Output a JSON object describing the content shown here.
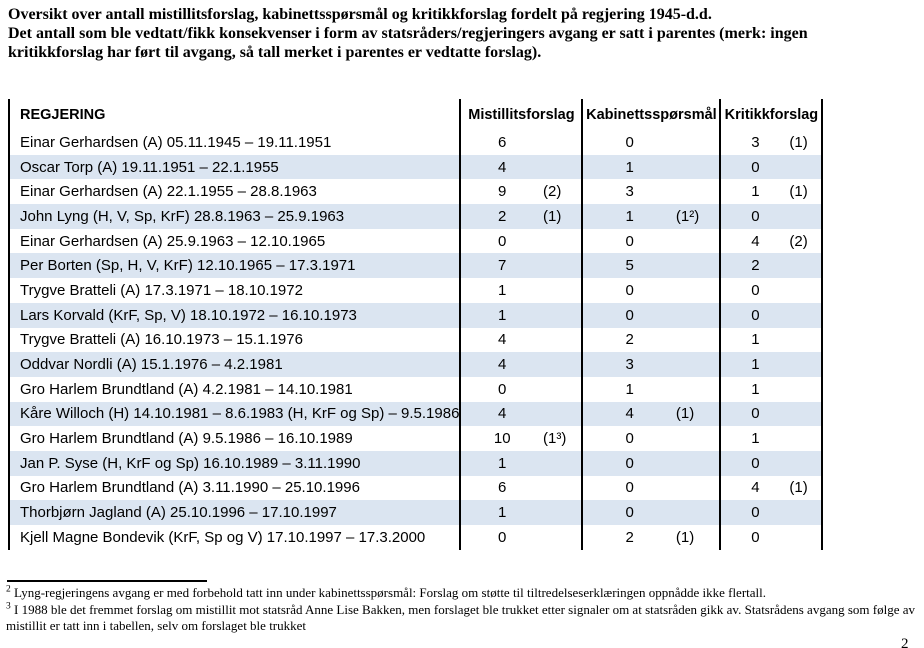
{
  "intro": {
    "lines": [
      "Oversikt over antall mistillitsforslag, kabinettsspørsmål og kritikkforslag fordelt på regjering 1945-d.d.",
      "Det antall som ble vedtatt/fikk konsekvenser i form av statsråders/regjeringers avgang er satt i parentes (merk: ingen",
      "kritikkforslag har ført til avgang, så tall merket i parentes er vedtatte forslag)."
    ]
  },
  "table": {
    "columns": [
      "REGJERING",
      "Mistillitsforslag",
      "Kabinettsspørsmål",
      "Kritikkforslag"
    ],
    "rows": [
      {
        "regjering": "Einar Gerhardsen (A) 05.11.1945 – 19.11.1951",
        "mistillitsforslag": "6",
        "mistillitsforslag_vedtatt": "",
        "kabinettssporsmal": "0",
        "kabinettssporsmal_vedtatt": "",
        "kritikkforslag": "3",
        "kritikkforslag_vedtatt": "(1)"
      },
      {
        "regjering": "Oscar Torp (A) 19.11.1951 – 22.1.1955",
        "mistillitsforslag": "4",
        "mistillitsforslag_vedtatt": "",
        "kabinettssporsmal": "1",
        "kabinettssporsmal_vedtatt": "",
        "kritikkforslag": "0",
        "kritikkforslag_vedtatt": ""
      },
      {
        "regjering": "Einar Gerhardsen (A) 22.1.1955 – 28.8.1963",
        "mistillitsforslag": "9",
        "mistillitsforslag_vedtatt": "(2)",
        "kabinettssporsmal": "3",
        "kabinettssporsmal_vedtatt": "",
        "kritikkforslag": "1",
        "kritikkforslag_vedtatt": "(1)"
      },
      {
        "regjering": "John Lyng (H, V, Sp, KrF) 28.8.1963 – 25.9.1963",
        "mistillitsforslag": "2",
        "mistillitsforslag_vedtatt": "(1)",
        "kabinettssporsmal": "1",
        "kabinettssporsmal_vedtatt": "(1²)",
        "kritikkforslag": "0",
        "kritikkforslag_vedtatt": ""
      },
      {
        "regjering": "Einar Gerhardsen (A) 25.9.1963 – 12.10.1965",
        "mistillitsforslag": "0",
        "mistillitsforslag_vedtatt": "",
        "kabinettssporsmal": "0",
        "kabinettssporsmal_vedtatt": "",
        "kritikkforslag": "4",
        "kritikkforslag_vedtatt": "(2)"
      },
      {
        "regjering": "Per Borten (Sp, H, V, KrF) 12.10.1965 – 17.3.1971",
        "mistillitsforslag": "7",
        "mistillitsforslag_vedtatt": "",
        "kabinettssporsmal": "5",
        "kabinettssporsmal_vedtatt": "",
        "kritikkforslag": "2",
        "kritikkforslag_vedtatt": ""
      },
      {
        "regjering": "Trygve Bratteli (A) 17.3.1971 – 18.10.1972",
        "mistillitsforslag": "1",
        "mistillitsforslag_vedtatt": "",
        "kabinettssporsmal": "0",
        "kabinettssporsmal_vedtatt": "",
        "kritikkforslag": "0",
        "kritikkforslag_vedtatt": ""
      },
      {
        "regjering": "Lars Korvald (KrF, Sp, V) 18.10.1972 – 16.10.1973",
        "mistillitsforslag": "1",
        "mistillitsforslag_vedtatt": "",
        "kabinettssporsmal": "0",
        "kabinettssporsmal_vedtatt": "",
        "kritikkforslag": "0",
        "kritikkforslag_vedtatt": ""
      },
      {
        "regjering": "Trygve Bratteli (A) 16.10.1973 – 15.1.1976",
        "mistillitsforslag": "4",
        "mistillitsforslag_vedtatt": "",
        "kabinettssporsmal": "2",
        "kabinettssporsmal_vedtatt": "",
        "kritikkforslag": "1",
        "kritikkforslag_vedtatt": ""
      },
      {
        "regjering": "Oddvar Nordli (A) 15.1.1976 – 4.2.1981",
        "mistillitsforslag": "4",
        "mistillitsforslag_vedtatt": "",
        "kabinettssporsmal": "3",
        "kabinettssporsmal_vedtatt": "",
        "kritikkforslag": "1",
        "kritikkforslag_vedtatt": ""
      },
      {
        "regjering": "Gro Harlem Brundtland (A) 4.2.1981 – 14.10.1981",
        "mistillitsforslag": "0",
        "mistillitsforslag_vedtatt": "",
        "kabinettssporsmal": "1",
        "kabinettssporsmal_vedtatt": "",
        "kritikkforslag": "1",
        "kritikkforslag_vedtatt": ""
      },
      {
        "regjering": "Kåre Willoch (H) 14.10.1981 – 8.6.1983 (H, KrF og Sp) – 9.5.1986",
        "mistillitsforslag": "4",
        "mistillitsforslag_vedtatt": "",
        "kabinettssporsmal": "4",
        "kabinettssporsmal_vedtatt": "(1)",
        "kritikkforslag": "0",
        "kritikkforslag_vedtatt": ""
      },
      {
        "regjering": "Gro Harlem Brundtland (A) 9.5.1986 – 16.10.1989",
        "mistillitsforslag": "10",
        "mistillitsforslag_vedtatt": "(1³)",
        "kabinettssporsmal": "0",
        "kabinettssporsmal_vedtatt": "",
        "kritikkforslag": "1",
        "kritikkforslag_vedtatt": ""
      },
      {
        "regjering": "Jan P. Syse (H, KrF og Sp) 16.10.1989 – 3.11.1990",
        "mistillitsforslag": "1",
        "mistillitsforslag_vedtatt": "",
        "kabinettssporsmal": "0",
        "kabinettssporsmal_vedtatt": "",
        "kritikkforslag": "0",
        "kritikkforslag_vedtatt": ""
      },
      {
        "regjering": "Gro Harlem Brundtland (A) 3.11.1990 – 25.10.1996",
        "mistillitsforslag": "6",
        "mistillitsforslag_vedtatt": "",
        "kabinettssporsmal": "0",
        "kabinettssporsmal_vedtatt": "",
        "kritikkforslag": "4",
        "kritikkforslag_vedtatt": "(1)"
      },
      {
        "regjering": "Thorbjørn Jagland (A) 25.10.1996 – 17.10.1997",
        "mistillitsforslag": "1",
        "mistillitsforslag_vedtatt": "",
        "kabinettssporsmal": "0",
        "kabinettssporsmal_vedtatt": "",
        "kritikkforslag": "0",
        "kritikkforslag_vedtatt": ""
      },
      {
        "regjering": "Kjell Magne Bondevik (KrF, Sp og V) 17.10.1997 – 17.3.2000",
        "mistillitsforslag": "0",
        "mistillitsforslag_vedtatt": "",
        "kabinettssporsmal": "2",
        "kabinettssporsmal_vedtatt": "(1)",
        "kritikkforslag": "0",
        "kritikkforslag_vedtatt": ""
      }
    ]
  },
  "footnotes": [
    {
      "marker": "2",
      "text": " Lyng-regjeringens avgang er med forbehold tatt inn under kabinettsspørsmål: Forslag om støtte til tiltredelseserklæringen oppnådde ikke flertall."
    },
    {
      "marker": "3",
      "text": " I 1988 ble det fremmet forslag om mistillit mot statsråd Anne Lise Bakken, men forslaget ble trukket etter signaler om at statsråden gikk av. Statsrådens avgang som følge av mistillit er tatt inn i tabellen, selv om forslaget ble trukket"
    }
  ],
  "page_number": "2",
  "colors": {
    "header_bg": "#95B3D7",
    "band_bg": "#DBE5F1",
    "border": "#000000",
    "text": "#000000"
  }
}
